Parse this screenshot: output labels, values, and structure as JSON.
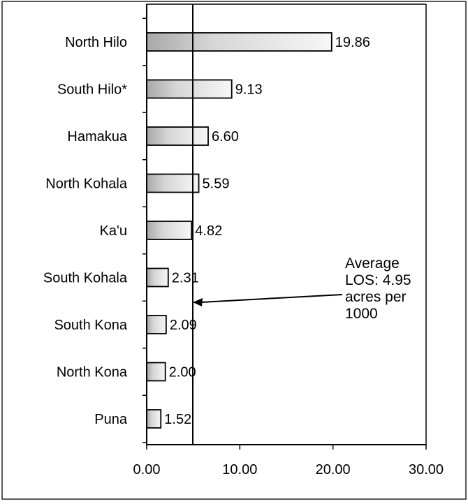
{
  "chart_data": {
    "type": "bar",
    "orientation": "horizontal",
    "categories": [
      "North Hilo",
      "South Hilo*",
      "Hamakua",
      "North Kohala",
      "Ka'u",
      "South Kohala",
      "South Kona",
      "North Kona",
      "Puna"
    ],
    "values": [
      19.86,
      9.13,
      6.6,
      5.59,
      4.82,
      2.31,
      2.09,
      2.0,
      1.52
    ],
    "value_labels": [
      "19.86",
      "9.13",
      "6.60",
      "5.59",
      "4.82",
      "2.31",
      "2.09",
      "2.00",
      "1.52"
    ],
    "xlim": [
      0,
      30
    ],
    "x_ticks": [
      "0.00",
      "10.00",
      "20.00",
      "30.00"
    ],
    "grid": false,
    "reference_line": {
      "value": 4.95,
      "label_lines": [
        "Average",
        "LOS: 4.95",
        "acres per",
        "1000"
      ]
    },
    "colors": {
      "bar_fill": "#f4f4f4",
      "bar_shade": "#a8a8a8",
      "axis": "#000000"
    }
  }
}
